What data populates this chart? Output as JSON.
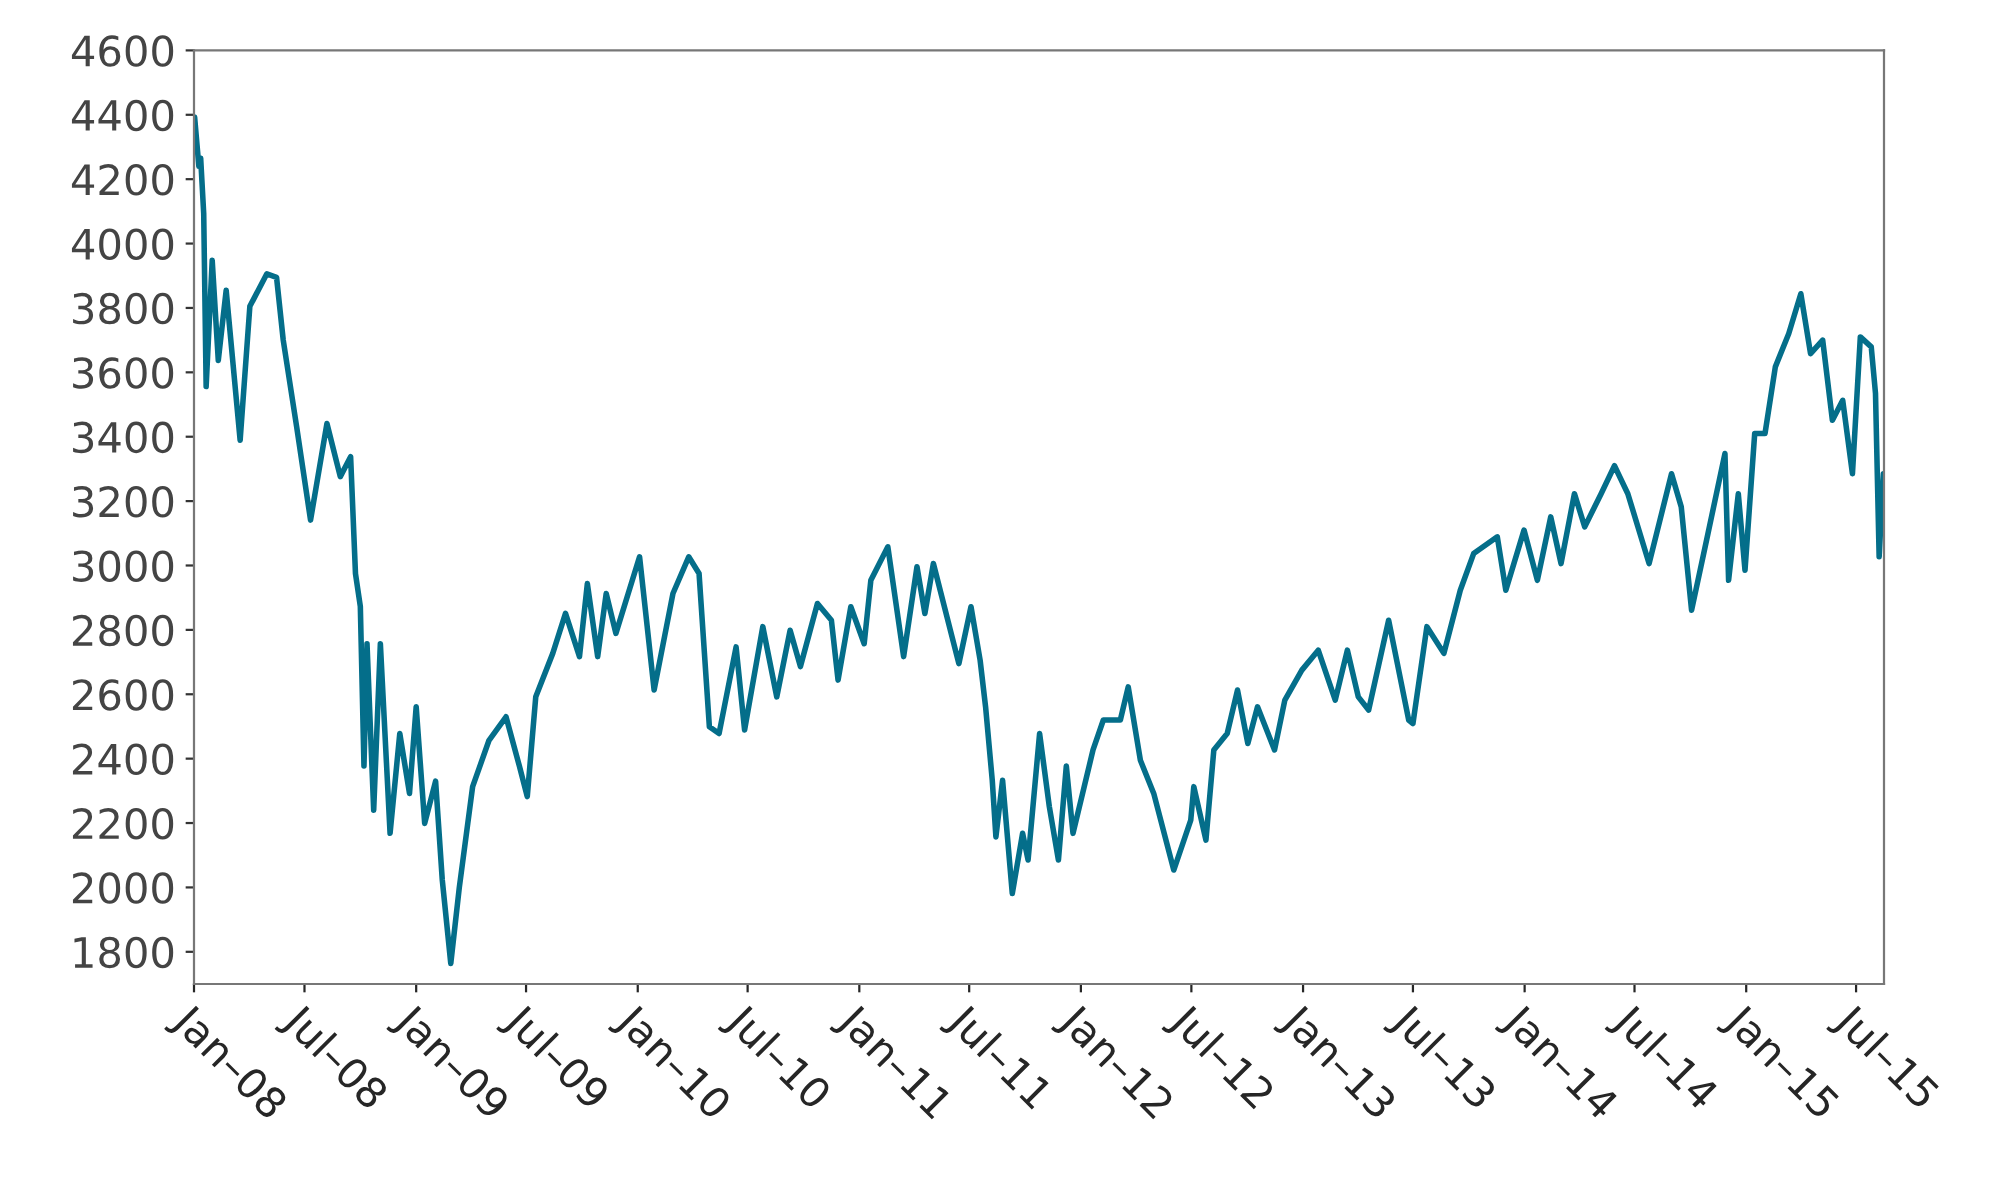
{
  "chart_data": {
    "type": "line",
    "x": [
      "2008-01-02",
      "2008-01-09",
      "2008-01-12",
      "2008-01-17",
      "2008-01-21",
      "2008-01-31",
      "2008-02-10",
      "2008-02-23",
      "2008-03-17",
      "2008-04-02",
      "2008-04-30",
      "2008-05-16",
      "2008-05-27",
      "2008-06-18",
      "2008-07-11",
      "2008-08-07",
      "2008-08-29",
      "2008-09-15",
      "2008-09-23",
      "2008-10-01",
      "2008-10-07",
      "2008-10-12",
      "2008-10-23",
      "2008-11-03",
      "2008-11-19",
      "2008-12-05",
      "2008-12-21",
      "2009-01-01",
      "2009-01-15",
      "2009-02-02",
      "2009-02-13",
      "2009-02-27",
      "2009-03-13",
      "2009-04-04",
      "2009-05-01",
      "2009-05-29",
      "2009-06-20",
      "2009-07-03",
      "2009-07-17",
      "2009-08-14",
      "2009-09-04",
      "2009-09-27",
      "2009-10-10",
      "2009-10-27",
      "2009-11-10",
      "2009-11-26",
      "2010-01-04",
      "2010-01-28",
      "2010-02-28",
      "2010-03-26",
      "2010-04-12",
      "2010-04-29",
      "2010-05-15",
      "2010-06-12",
      "2010-06-26",
      "2010-07-26",
      "2010-08-18",
      "2010-09-09",
      "2010-09-26",
      "2010-10-24",
      "2010-11-16",
      "2010-11-27",
      "2010-12-18",
      "2011-01-09",
      "2011-01-20",
      "2011-02-17",
      "2011-03-15",
      "2011-04-06",
      "2011-04-19",
      "2011-05-03",
      "2011-06-14",
      "2011-07-04",
      "2011-07-19",
      "2011-07-28",
      "2011-08-08",
      "2011-08-14",
      "2011-08-25",
      "2011-09-10",
      "2011-09-27",
      "2011-10-06",
      "2011-10-25",
      "2011-11-10",
      "2011-11-25",
      "2011-12-08",
      "2011-12-19",
      "2012-01-21",
      "2012-02-07",
      "2012-03-06",
      "2012-03-19",
      "2012-04-08",
      "2012-04-30",
      "2012-06-02",
      "2012-06-30",
      "2012-07-05",
      "2012-07-25",
      "2012-08-07",
      "2012-08-29",
      "2012-09-15",
      "2012-10-02",
      "2012-10-18",
      "2012-11-15",
      "2012-12-02",
      "2012-12-30",
      "2013-01-26",
      "2013-02-23",
      "2013-03-15",
      "2013-04-02",
      "2013-04-19",
      "2013-05-22",
      "2013-06-24",
      "2013-07-01",
      "2013-07-24",
      "2013-08-21",
      "2013-09-17",
      "2013-10-09",
      "2013-11-17",
      "2013-12-01",
      "2013-12-31",
      "2014-01-22",
      "2014-02-13",
      "2014-03-02",
      "2014-03-24",
      "2014-04-10",
      "2014-05-07",
      "2014-05-29",
      "2014-06-20",
      "2014-07-25",
      "2014-08-31",
      "2014-09-16",
      "2014-10-03",
      "2014-10-30",
      "2014-11-27",
      "2014-12-03",
      "2014-12-19",
      "2014-12-30",
      "2015-01-15",
      "2015-02-01",
      "2015-02-18",
      "2015-03-12",
      "2015-04-01",
      "2015-04-17",
      "2015-05-07",
      "2015-05-23",
      "2015-06-09",
      "2015-06-25",
      "2015-07-08",
      "2015-07-26",
      "2015-08-02",
      "2015-08-08",
      "2015-08-15"
    ],
    "series": [
      {
        "color": "#046e8a",
        "values": [
          4393,
          4240,
          4265,
          4093,
          3556,
          3948,
          3637,
          3855,
          3389,
          3805,
          3906,
          3895,
          3700,
          3432,
          3141,
          3441,
          3276,
          3338,
          2975,
          2873,
          2377,
          2757,
          2240,
          2757,
          2168,
          2478,
          2292,
          2561,
          2199,
          2330,
          2023,
          1764,
          1999,
          2313,
          2457,
          2530,
          2377,
          2282,
          2592,
          2727,
          2851,
          2717,
          2944,
          2717,
          2913,
          2789,
          3027,
          2613,
          2913,
          3027,
          2975,
          2499,
          2478,
          2747,
          2489,
          2810,
          2592,
          2799,
          2686,
          2882,
          2830,
          2644,
          2872,
          2757,
          2954,
          3058,
          2717,
          2996,
          2851,
          3006,
          2695,
          2872,
          2706,
          2561,
          2333,
          2157,
          2333,
          1981,
          2168,
          2085,
          2478,
          2251,
          2085,
          2377,
          2168,
          2427,
          2520,
          2520,
          2623,
          2395,
          2292,
          2054,
          2209,
          2313,
          2147,
          2427,
          2478,
          2613,
          2447,
          2561,
          2427,
          2582,
          2675,
          2737,
          2582,
          2737,
          2592,
          2551,
          2830,
          2520,
          2509,
          2810,
          2727,
          2923,
          3037,
          3089,
          2923,
          3110,
          2954,
          3151,
          3006,
          3223,
          3120,
          3223,
          3310,
          3223,
          3006,
          3285,
          3182,
          2861,
          3099,
          3348,
          2954,
          3223,
          2985,
          3410,
          3410,
          3617,
          3720,
          3844,
          3658,
          3700,
          3451,
          3513,
          3285,
          3710,
          3679,
          3534,
          3027,
          3285
        ]
      }
    ],
    "xlim": [
      "2008-01-01",
      "2015-08-16"
    ],
    "xticks": [
      {
        "value": "2008-01-01",
        "label": "Jan–08"
      },
      {
        "value": "2008-07-01",
        "label": "Jul–08"
      },
      {
        "value": "2009-01-01",
        "label": "Jan–09"
      },
      {
        "value": "2009-07-01",
        "label": "Jul–09"
      },
      {
        "value": "2010-01-01",
        "label": "Jan–10"
      },
      {
        "value": "2010-07-01",
        "label": "Jul–10"
      },
      {
        "value": "2011-01-01",
        "label": "Jan–11"
      },
      {
        "value": "2011-07-01",
        "label": "Jul–11"
      },
      {
        "value": "2012-01-01",
        "label": "Jan–12"
      },
      {
        "value": "2012-07-01",
        "label": "Jul–12"
      },
      {
        "value": "2013-01-01",
        "label": "Jan–13"
      },
      {
        "value": "2013-07-01",
        "label": "Jul–13"
      },
      {
        "value": "2014-01-01",
        "label": "Jan–14"
      },
      {
        "value": "2014-07-01",
        "label": "Jul–14"
      },
      {
        "value": "2015-01-01",
        "label": "Jan–15"
      },
      {
        "value": "2015-07-01",
        "label": "Jul–15"
      }
    ],
    "ylim": [
      1700,
      4600
    ],
    "yticks": [
      1800,
      2000,
      2200,
      2400,
      2600,
      2800,
      3000,
      3200,
      3400,
      3600,
      3800,
      4000,
      4200,
      4400,
      4600
    ],
    "marker": "none",
    "line_style": "solid"
  }
}
